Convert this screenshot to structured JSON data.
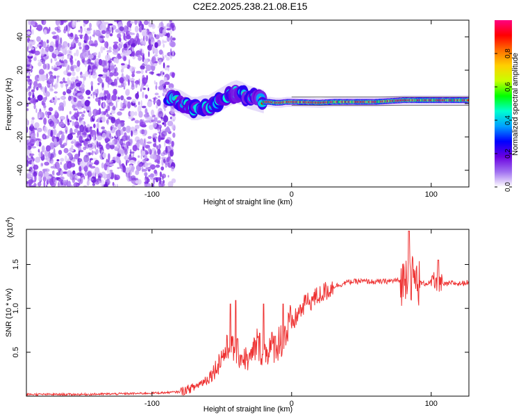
{
  "title": "C2E2.2025.238.21.08.E15",
  "chart_data": [
    {
      "type": "heatmap",
      "xlabel": "Height of straight line (km)",
      "ylabel": "Frequency (Hz)",
      "xlim": [
        -190,
        127
      ],
      "ylim": [
        -50,
        50
      ],
      "xticks": [
        -100,
        0,
        100
      ],
      "yticks": [
        -40,
        -20,
        0,
        20,
        40
      ],
      "xtick_labels": [
        "-100",
        "0",
        "100"
      ],
      "ytick_labels": [
        "-40",
        "-20",
        "0",
        "20",
        "40"
      ],
      "noise_region_x": [
        -190,
        -87
      ],
      "ridge": {
        "x": [
          -87,
          -84,
          -80,
          -76,
          -72,
          -68,
          -64,
          -60,
          -56,
          -52,
          -48,
          -44,
          -40,
          -36,
          -32,
          -28,
          -24,
          -20,
          -16,
          -12,
          -8,
          -4,
          0,
          10,
          20,
          30,
          40,
          50,
          60,
          70,
          80,
          90,
          100,
          110,
          120,
          127
        ],
        "freq_hz": [
          3,
          2,
          1,
          -1,
          -3,
          -3,
          -2,
          -2,
          0,
          2,
          4,
          6,
          7,
          6,
          4,
          3,
          2,
          1,
          1,
          0.5,
          0.5,
          1,
          1,
          0.8,
          0.5,
          1,
          1,
          1,
          1,
          1.5,
          2,
          2,
          2,
          2,
          2,
          2
        ]
      },
      "colorbar": {
        "label": "Normalized spectral amplitude",
        "range": [
          0.0,
          1.0
        ],
        "ticks": [
          0.0,
          0.2,
          0.4,
          0.6,
          0.8
        ],
        "tick_labels": [
          "0.0",
          "0.2",
          "0.4",
          "0.6",
          "0.8"
        ],
        "colors": [
          "#ffffff",
          "#a070f0",
          "#6a00e0",
          "#0000ff",
          "#00a0ff",
          "#00ffd0",
          "#00ff00",
          "#c8ff00",
          "#ffd000",
          "#ff7000",
          "#ff0000",
          "#ff0080"
        ]
      }
    },
    {
      "type": "line",
      "xlabel": "Height of straight line (km)",
      "ylabel": "SNR (10 * v/v)",
      "y_multiplier_label": "(x10",
      "y_multiplier_exp": "4",
      "xlim": [
        -190,
        127
      ],
      "ylim": [
        0,
        1.9
      ],
      "xticks": [
        -100,
        0,
        100
      ],
      "yticks": [
        0.5,
        1.0,
        1.5
      ],
      "xtick_labels": [
        "-100",
        "0",
        "100"
      ],
      "ytick_labels": [
        "0.5",
        "1.0",
        "1.5"
      ],
      "line_color": "#ee3030",
      "series": [
        {
          "name": "SNR",
          "x": [
            -190,
            -150,
            -110,
            -90,
            -80,
            -70,
            -60,
            -55,
            -50,
            -45,
            -40,
            -35,
            -30,
            -25,
            -20,
            -15,
            -10,
            -5,
            0,
            5,
            10,
            15,
            20,
            25,
            30,
            35,
            40,
            50,
            60,
            70,
            75,
            80,
            83,
            86,
            90,
            95,
            100,
            105,
            110,
            115,
            120,
            127
          ],
          "values": [
            0.02,
            0.02,
            0.03,
            0.04,
            0.05,
            0.1,
            0.2,
            0.3,
            0.45,
            0.55,
            0.5,
            0.45,
            0.4,
            0.6,
            0.5,
            0.55,
            0.6,
            0.7,
            0.8,
            0.95,
            1.05,
            1.1,
            1.15,
            1.2,
            1.25,
            1.27,
            1.3,
            1.31,
            1.3,
            1.31,
            1.32,
            1.3,
            1.45,
            1.35,
            1.3,
            1.28,
            1.3,
            1.28,
            1.27,
            1.29,
            1.28,
            1.3
          ]
        }
      ],
      "spike_peaks": [
        {
          "x": -44,
          "y": 1.05
        },
        {
          "x": -40,
          "y": 1.09
        },
        {
          "x": -20,
          "y": 1.05
        },
        {
          "x": -6,
          "y": 1.05
        },
        {
          "x": 10,
          "y": 1.15
        },
        {
          "x": 84,
          "y": 1.88
        },
        {
          "x": 105,
          "y": 1.55
        }
      ]
    }
  ]
}
